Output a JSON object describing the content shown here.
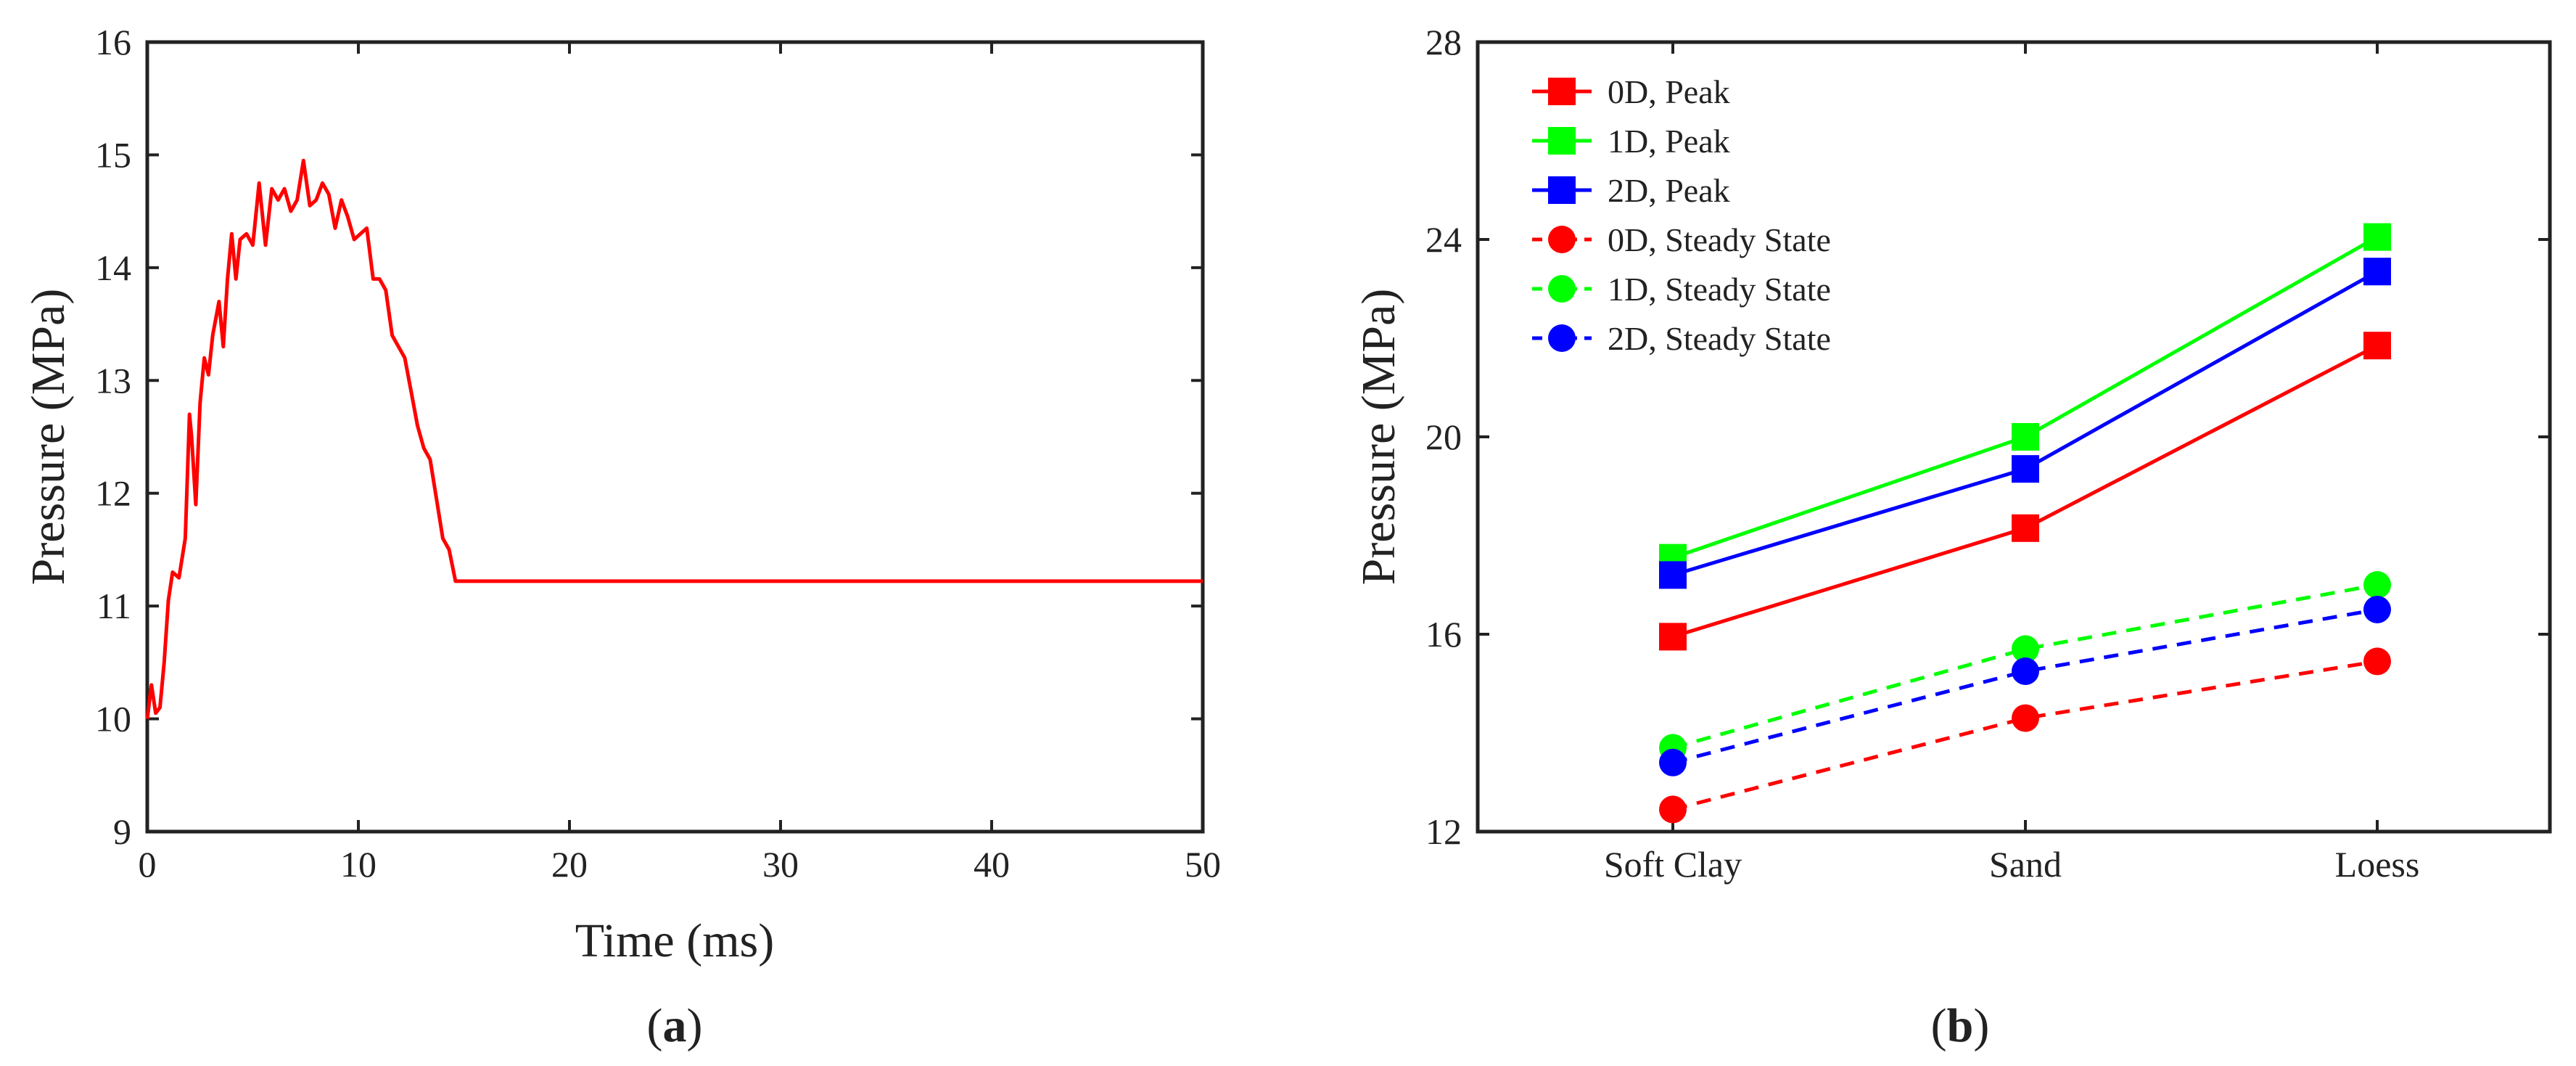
{
  "chart_data": [
    {
      "type": "line",
      "panel_label": "a",
      "xlabel": "Time (ms)",
      "ylabel": "Pressure (MPa)",
      "xlim": [
        0,
        50
      ],
      "ylim": [
        9,
        16
      ],
      "xticks": [
        "0",
        "10",
        "20",
        "30",
        "40",
        "50"
      ],
      "yticks": [
        "9",
        "10",
        "11",
        "12",
        "13",
        "14",
        "15",
        "16"
      ],
      "grid": false,
      "series": [
        {
          "name": "Pressure",
          "color": "#ff0000",
          "x": [
            0,
            0.2,
            0.4,
            0.6,
            0.8,
            1.0,
            1.2,
            1.5,
            1.8,
            2.0,
            2.1,
            2.3,
            2.5,
            2.7,
            2.9,
            3.1,
            3.4,
            3.6,
            3.8,
            4.0,
            4.2,
            4.4,
            4.7,
            5.0,
            5.3,
            5.6,
            5.9,
            6.2,
            6.5,
            6.8,
            7.1,
            7.4,
            7.7,
            8.0,
            8.3,
            8.6,
            8.9,
            9.2,
            9.5,
            9.8,
            10.1,
            10.4,
            10.7,
            11.0,
            11.3,
            11.6,
            11.9,
            12.2,
            12.5,
            12.8,
            13.1,
            13.4,
            13.7,
            14.0,
            14.3,
            14.6,
            14.9,
            15.2,
            15.5,
            15.8,
            16.1,
            16.3,
            16.5,
            17,
            20,
            30,
            40,
            50
          ],
          "y": [
            10.0,
            10.3,
            10.05,
            10.1,
            10.5,
            11.05,
            11.3,
            11.25,
            11.6,
            12.7,
            12.5,
            11.9,
            12.8,
            13.2,
            13.05,
            13.4,
            13.7,
            13.3,
            13.9,
            14.3,
            13.9,
            14.25,
            14.3,
            14.2,
            14.75,
            14.2,
            14.7,
            14.6,
            14.7,
            14.5,
            14.6,
            14.95,
            14.55,
            14.6,
            14.75,
            14.65,
            14.35,
            14.6,
            14.45,
            14.25,
            14.3,
            14.35,
            13.9,
            13.9,
            13.8,
            13.4,
            13.3,
            13.2,
            12.9,
            12.6,
            12.4,
            12.3,
            11.95,
            11.6,
            11.5,
            11.22,
            11.22,
            11.22,
            11.22,
            11.22,
            11.22,
            11.22,
            11.22,
            11.22,
            11.22,
            11.22,
            11.22,
            11.22
          ]
        }
      ]
    },
    {
      "type": "line",
      "panel_label": "b",
      "xlabel": "",
      "ylabel": "Pressure (MPa)",
      "ylim": [
        12,
        28
      ],
      "yticks": [
        "12",
        "16",
        "20",
        "24",
        "28"
      ],
      "categories": [
        "Soft Clay",
        "Sand",
        "Loess"
      ],
      "grid": false,
      "legend_position": "top-left",
      "series": [
        {
          "name": "0D, Peak",
          "color": "#ff0000",
          "marker": "square",
          "dash": "solid",
          "values": [
            15.95,
            18.15,
            21.85
          ]
        },
        {
          "name": "1D, Peak",
          "color": "#00ff00",
          "marker": "square",
          "dash": "solid",
          "values": [
            17.55,
            20.0,
            24.05
          ]
        },
        {
          "name": "2D, Peak",
          "color": "#0000ff",
          "marker": "square",
          "dash": "solid",
          "values": [
            17.2,
            19.35,
            23.35
          ]
        },
        {
          "name": "0D, Steady State",
          "color": "#ff0000",
          "marker": "circle",
          "dash": "dashed",
          "values": [
            12.45,
            14.3,
            15.45
          ]
        },
        {
          "name": "1D, Steady State",
          "color": "#00ff00",
          "marker": "circle",
          "dash": "dashed",
          "values": [
            13.7,
            15.7,
            17.0
          ]
        },
        {
          "name": "2D, Steady State",
          "color": "#0000ff",
          "marker": "circle",
          "dash": "dashed",
          "values": [
            13.4,
            15.25,
            16.5
          ]
        }
      ]
    }
  ]
}
